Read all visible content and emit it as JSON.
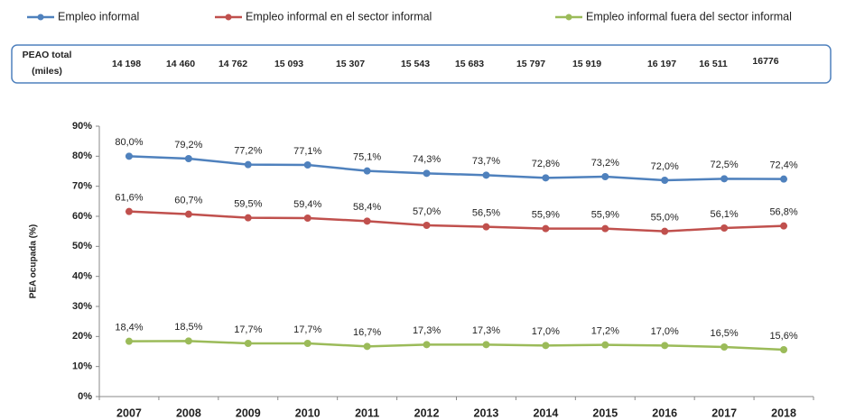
{
  "chart_data": {
    "type": "line",
    "y_label": "PEA ocupada (%)",
    "categories": [
      "2007",
      "2008",
      "2009",
      "2010",
      "2011",
      "2012",
      "2013",
      "2014",
      "2015",
      "2016",
      "2017",
      "2018"
    ],
    "ylim": [
      0,
      90
    ],
    "yticks": [
      {
        "value": 0,
        "label": "0%"
      },
      {
        "value": 10,
        "label": "10%"
      },
      {
        "value": 20,
        "label": "20%"
      },
      {
        "value": 30,
        "label": "30%"
      },
      {
        "value": 40,
        "label": "40%"
      },
      {
        "value": 50,
        "label": "50%"
      },
      {
        "value": 60,
        "label": "60%"
      },
      {
        "value": 70,
        "label": "70%"
      },
      {
        "value": 80,
        "label": "80%"
      },
      {
        "value": 90,
        "label": "90%"
      }
    ],
    "series": [
      {
        "name": "Empleo informal",
        "color": "#4f81bd",
        "values": [
          80.0,
          79.2,
          77.2,
          77.1,
          75.1,
          74.3,
          73.7,
          72.8,
          73.2,
          72.0,
          72.5,
          72.4
        ],
        "value_labels": [
          "80,0%",
          "79,2%",
          "77,2%",
          "77,1%",
          "75,1%",
          "74,3%",
          "73,7%",
          "72,8%",
          "73,2%",
          "72,0%",
          "72,5%",
          "72,4%"
        ]
      },
      {
        "name": "Empleo informal en el sector informal",
        "color": "#c0504d",
        "values": [
          61.6,
          60.7,
          59.5,
          59.4,
          58.4,
          57.0,
          56.5,
          55.9,
          55.9,
          55.0,
          56.1,
          56.8
        ],
        "value_labels": [
          "61,6%",
          "60,7%",
          "59,5%",
          "59,4%",
          "58,4%",
          "57,0%",
          "56,5%",
          "55,9%",
          "55,9%",
          "55,0%",
          "56,1%",
          "56,8%"
        ]
      },
      {
        "name": "Empleo informal fuera del sector informal",
        "color": "#9bbb59",
        "values": [
          18.4,
          18.5,
          17.7,
          17.7,
          16.7,
          17.3,
          17.3,
          17.0,
          17.2,
          17.0,
          16.5,
          15.6
        ],
        "value_labels": [
          "18,4%",
          "18,5%",
          "17,7%",
          "17,7%",
          "16,7%",
          "17,3%",
          "17,3%",
          "17,0%",
          "17,2%",
          "17,0%",
          "16,5%",
          "15,6%"
        ]
      }
    ]
  },
  "peao_table": {
    "header": [
      "PEAO total",
      "(miles)"
    ],
    "values": [
      "14 198",
      "14 460",
      "14 762",
      "15 093",
      "15 307",
      "15 543",
      "15 683",
      "15 797",
      "15 919",
      "16 197",
      "16 511",
      "16776"
    ]
  }
}
